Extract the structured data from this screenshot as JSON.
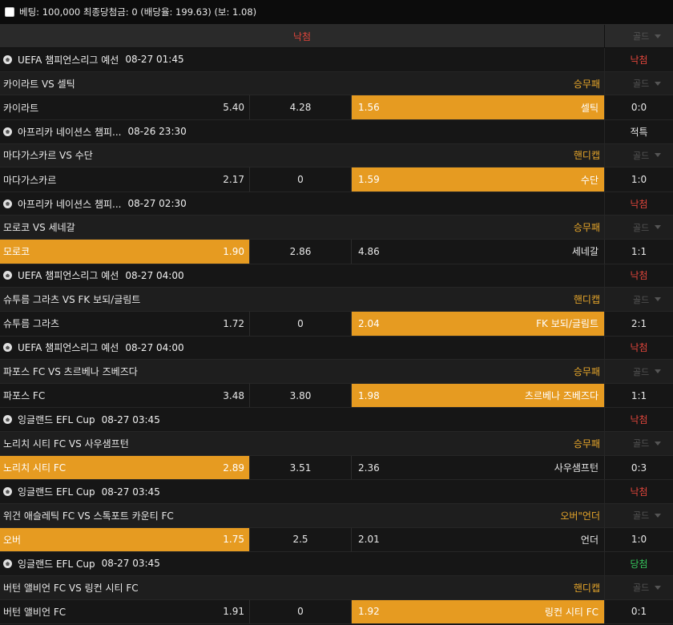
{
  "bet_info": "베팅: 100,000 최종당첨금: 0 (배당율: 199.63) (보: 1.08)",
  "result_header": "낙첨",
  "gold_label": "골드",
  "matches": [
    {
      "league": "UEFA 챔피언스리그 예선",
      "datetime": "08-27 01:45",
      "status": "낙첨",
      "status_type": "lose",
      "title": "카이라트 VS 셀틱",
      "bet_type": "승무패",
      "home": "카이라트",
      "home_odds": "5.40",
      "draw": "4.28",
      "away_odds": "1.56",
      "away": "셀틱",
      "score": "0:0",
      "selected": "away"
    },
    {
      "league": "아프리카 네이션스 챔피...",
      "datetime": "08-26 23:30",
      "status": "적특",
      "status_type": "special",
      "title": "마다가스카르 VS 수단",
      "bet_type": "핸디캡",
      "home": "마다가스카르",
      "home_odds": "2.17",
      "draw": "0",
      "away_odds": "1.59",
      "away": "수단",
      "score": "1:0",
      "selected": "away"
    },
    {
      "league": "아프리카 네이션스 챔피...",
      "datetime": "08-27 02:30",
      "status": "낙첨",
      "status_type": "lose",
      "title": "모로코 VS 세네갈",
      "bet_type": "승무패",
      "home": "모로코",
      "home_odds": "1.90",
      "draw": "2.86",
      "away_odds": "4.86",
      "away": "세네갈",
      "score": "1:1",
      "selected": "home"
    },
    {
      "league": "UEFA 챔피언스리그 예선",
      "datetime": "08-27 04:00",
      "status": "낙첨",
      "status_type": "lose",
      "title": "슈투름 그라츠 VS FK 보되/글림트",
      "bet_type": "핸디캡",
      "home": "슈투름 그라츠",
      "home_odds": "1.72",
      "draw": "0",
      "away_odds": "2.04",
      "away": "FK 보되/글림트",
      "score": "2:1",
      "selected": "away"
    },
    {
      "league": "UEFA 챔피언스리그 예선",
      "datetime": "08-27 04:00",
      "status": "낙첨",
      "status_type": "lose",
      "title": "파포스 FC VS 츠르베나 즈베즈다",
      "bet_type": "승무패",
      "home": "파포스 FC",
      "home_odds": "3.48",
      "draw": "3.80",
      "away_odds": "1.98",
      "away": "츠르베나 즈베즈다",
      "score": "1:1",
      "selected": "away"
    },
    {
      "league": "잉글랜드 EFL Cup",
      "datetime": "08-27 03:45",
      "status": "낙첨",
      "status_type": "lose",
      "title": "노리치 시티 FC VS 사우샘프턴",
      "bet_type": "승무패",
      "home": "노리치 시티 FC",
      "home_odds": "2.89",
      "draw": "3.51",
      "away_odds": "2.36",
      "away": "사우샘프턴",
      "score": "0:3",
      "selected": "home"
    },
    {
      "league": "잉글랜드 EFL Cup",
      "datetime": "08-27 03:45",
      "status": "낙첨",
      "status_type": "lose",
      "title": "위건 애슬레틱 FC VS 스톡포트 카운티 FC",
      "bet_type": "오버\"언더",
      "home": "오버",
      "home_odds": "1.75",
      "draw": "2.5",
      "away_odds": "2.01",
      "away": "언더",
      "score": "1:0",
      "selected": "home"
    },
    {
      "league": "잉글랜드 EFL Cup",
      "datetime": "08-27 03:45",
      "status": "당첨",
      "status_type": "win",
      "title": "버턴 앨비언 FC VS 링컨 시티 FC",
      "bet_type": "핸디캡",
      "home": "버턴 앨비언 FC",
      "home_odds": "1.91",
      "draw": "0",
      "away_odds": "1.92",
      "away": "링컨 시티 FC",
      "score": "0:1",
      "selected": "away"
    }
  ]
}
